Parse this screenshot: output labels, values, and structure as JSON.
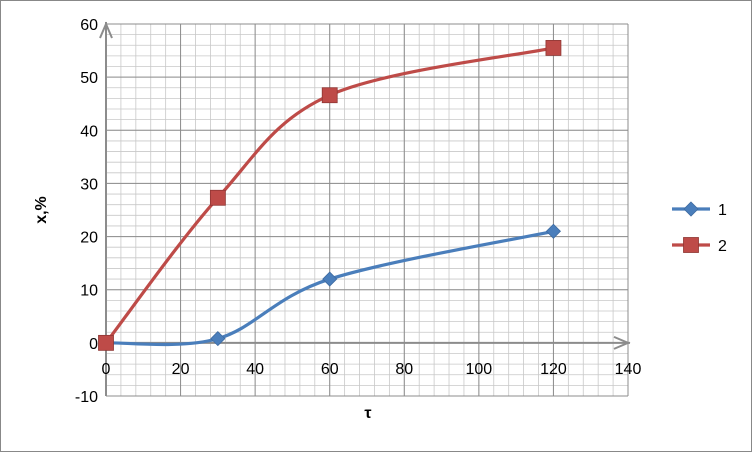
{
  "chart_data": {
    "type": "line",
    "title": "",
    "xlabel": "τ",
    "ylabel": "x,%",
    "xlim": [
      0,
      140
    ],
    "ylim": [
      -10,
      60
    ],
    "x_ticks": [
      0,
      20,
      40,
      60,
      80,
      100,
      120,
      140
    ],
    "y_ticks": [
      -10,
      0,
      10,
      20,
      30,
      40,
      50,
      60
    ],
    "grid": true,
    "legend_position": "right",
    "series": [
      {
        "name": "1",
        "color": "#4a7ebb",
        "marker": "diamond",
        "x": [
          0,
          30,
          60,
          120
        ],
        "y": [
          0,
          0.8,
          12,
          21
        ]
      },
      {
        "name": "2",
        "color": "#be4b48",
        "marker": "square",
        "x": [
          0,
          30,
          60,
          120
        ],
        "y": [
          0,
          27.3,
          46.6,
          55.5
        ]
      }
    ]
  }
}
